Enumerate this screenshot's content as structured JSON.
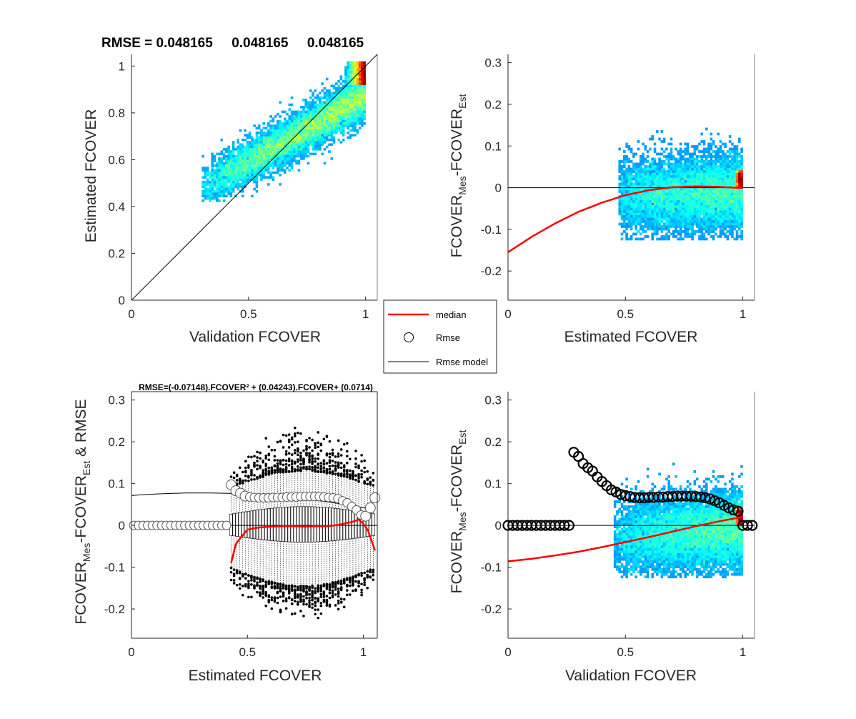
{
  "figure": {
    "background": "#ffffff",
    "colormap": "jet"
  },
  "legend": {
    "entries": [
      "median",
      "Rmse",
      "Rmse model"
    ],
    "colors": {
      "median": "#ff0000",
      "rmse": "#000000",
      "model": "#000000"
    }
  },
  "chart_data": [
    {
      "type": "heatmap",
      "id": "top-left",
      "title": "RMSE = 0.048165     0.048165     0.048165",
      "xlabel": "Validation FCOVER",
      "ylabel": "Estimated FCOVER",
      "xlim": [
        0,
        1.05
      ],
      "ylim": [
        0,
        1.05
      ],
      "xticks": [
        0,
        0.5,
        1
      ],
      "xticklabels": [
        "0",
        "0.5",
        "1"
      ],
      "yticks": [
        0,
        0.2,
        0.4,
        0.6,
        0.8,
        1
      ],
      "yticklabels": [
        "0",
        "0.2",
        "0.4",
        "0.6",
        "0.8",
        "1"
      ],
      "reference_line": "y = x",
      "density_cloud": {
        "x_range": [
          0.3,
          1.0
        ],
        "y_range": [
          0.44,
          1.05
        ],
        "trend": "y ≈ 0.48 + 0.55·(x − 0.3)",
        "peak": [
          0.99,
          0.98
        ]
      },
      "grid": false
    },
    {
      "type": "heatmap",
      "id": "top-right",
      "xlabel": "Estimated FCOVER",
      "ylabel": "FCOVER_Mes-FCOVER_Est",
      "xlim": [
        0,
        1.05
      ],
      "ylim": [
        -0.27,
        0.32
      ],
      "xticks": [
        0,
        0.5,
        1
      ],
      "xticklabels": [
        "0",
        "0.5",
        "1"
      ],
      "yticks": [
        -0.2,
        -0.1,
        0,
        0.1,
        0.2,
        0.3
      ],
      "yticklabels": [
        "-0.2",
        "-0.1",
        "0",
        "0.1",
        "0.2",
        "0.3"
      ],
      "zero_line": true,
      "median_curve": {
        "x": [
          0.0,
          0.1,
          0.2,
          0.3,
          0.4,
          0.5,
          0.6,
          0.7,
          0.8,
          0.9,
          1.0
        ],
        "y": [
          -0.155,
          -0.118,
          -0.086,
          -0.058,
          -0.036,
          -0.018,
          -0.006,
          0.001,
          0.003,
          0.002,
          -0.001
        ]
      },
      "density_cloud": {
        "x_range": [
          0.47,
          1.0
        ],
        "y_range": [
          -0.12,
          0.14
        ],
        "peak": [
          0.99,
          0.02
        ]
      },
      "grid": false
    },
    {
      "type": "box",
      "id": "bottom-left",
      "title": "RMSE=(-0.07148).FCOVER² + (0.04243).FCOVER+ (0.0714)",
      "xlabel": "Estimated FCOVER",
      "ylabel": "FCOVER_Mes-FCOVER_Est & RMSE",
      "xlim": [
        0,
        1.06
      ],
      "ylim": [
        -0.27,
        0.32
      ],
      "xticks": [
        0,
        0.5,
        1
      ],
      "xticklabels": [
        "0",
        "0.5",
        "1"
      ],
      "yticks": [
        -0.2,
        -0.1,
        0,
        0.1,
        0.2,
        0.3
      ],
      "yticklabels": [
        "-0.2",
        "-0.1",
        "0",
        "0.1",
        "0.2",
        "0.3"
      ],
      "zero_line": true,
      "rmse_model": {
        "a": -0.07148,
        "b": 0.04243,
        "c": 0.0714
      },
      "rmse_points": {
        "x": [
          0.01,
          0.03,
          0.05,
          0.07,
          0.09,
          0.11,
          0.13,
          0.15,
          0.17,
          0.19,
          0.21,
          0.23,
          0.25,
          0.27,
          0.29,
          0.31,
          0.33,
          0.35,
          0.37,
          0.39,
          0.41,
          0.43,
          0.45,
          0.47,
          0.49,
          0.51,
          0.53,
          0.55,
          0.57,
          0.59,
          0.61,
          0.63,
          0.65,
          0.67,
          0.69,
          0.71,
          0.73,
          0.75,
          0.77,
          0.79,
          0.81,
          0.83,
          0.85,
          0.87,
          0.89,
          0.91,
          0.93,
          0.95,
          0.97,
          0.99,
          1.01,
          1.03,
          1.05
        ],
        "y": [
          0,
          0,
          0,
          0,
          0,
          0,
          0,
          0,
          0,
          0,
          0,
          0,
          0,
          0,
          0,
          0,
          0,
          0,
          0,
          0,
          0,
          0.097,
          0.083,
          0.077,
          0.07,
          0.068,
          0.067,
          0.066,
          0.066,
          0.066,
          0.067,
          0.067,
          0.067,
          0.068,
          0.068,
          0.068,
          0.069,
          0.069,
          0.069,
          0.069,
          0.069,
          0.068,
          0.067,
          0.066,
          0.064,
          0.059,
          0.054,
          0.045,
          0.037,
          0.025,
          0.022,
          0.042,
          0.066
        ]
      },
      "median_curve": {
        "x": [
          0.43,
          0.45,
          0.47,
          0.5,
          0.55,
          0.6,
          0.65,
          0.7,
          0.75,
          0.8,
          0.85,
          0.9,
          0.95,
          0.98,
          1.0,
          1.02,
          1.05
        ],
        "y": [
          -0.09,
          -0.045,
          -0.03,
          -0.01,
          -0.005,
          -0.003,
          -0.002,
          -0.002,
          -0.003,
          -0.002,
          -0.002,
          0.002,
          0.008,
          0.014,
          0.004,
          -0.012,
          -0.06
        ]
      },
      "boxes": {
        "x_range": [
          0.43,
          1.05
        ],
        "q1": -0.04,
        "q3": 0.045,
        "whisker_low": -0.145,
        "whisker_high": 0.13,
        "outlier_range_low": [
          -0.23,
          -0.13
        ],
        "outlier_range_high": [
          0.12,
          0.25
        ]
      },
      "grid": false
    },
    {
      "type": "heatmap",
      "id": "bottom-right",
      "xlabel": "Validation FCOVER",
      "ylabel": "FCOVER_Mes-FCOVER_Est",
      "xlim": [
        0,
        1.05
      ],
      "ylim": [
        -0.27,
        0.32
      ],
      "xticks": [
        0,
        0.5,
        1
      ],
      "xticklabels": [
        "0",
        "0.5",
        "1"
      ],
      "yticks": [
        -0.2,
        -0.1,
        0,
        0.1,
        0.2,
        0.3
      ],
      "yticklabels": [
        "-0.2",
        "-0.1",
        "0",
        "0.1",
        "0.2",
        "0.3"
      ],
      "zero_line": true,
      "rmse_points": {
        "x": [
          0.0,
          0.02,
          0.04,
          0.06,
          0.08,
          0.1,
          0.12,
          0.14,
          0.16,
          0.18,
          0.2,
          0.22,
          0.24,
          0.26,
          0.28,
          0.3,
          0.32,
          0.34,
          0.36,
          0.38,
          0.4,
          0.42,
          0.44,
          0.46,
          0.48,
          0.5,
          0.52,
          0.54,
          0.56,
          0.58,
          0.6,
          0.62,
          0.64,
          0.66,
          0.68,
          0.7,
          0.72,
          0.74,
          0.76,
          0.78,
          0.8,
          0.82,
          0.84,
          0.86,
          0.88,
          0.9,
          0.92,
          0.94,
          0.96,
          0.98,
          1.0,
          1.02,
          1.04
        ],
        "y": [
          0,
          0,
          0,
          0,
          0,
          0,
          0,
          0,
          0,
          0,
          0,
          0,
          0,
          0,
          0.175,
          0.165,
          0.148,
          0.138,
          0.13,
          0.116,
          0.105,
          0.095,
          0.085,
          0.08,
          0.074,
          0.071,
          0.069,
          0.067,
          0.066,
          0.066,
          0.067,
          0.067,
          0.068,
          0.068,
          0.069,
          0.069,
          0.07,
          0.07,
          0.07,
          0.07,
          0.069,
          0.068,
          0.066,
          0.063,
          0.059,
          0.054,
          0.048,
          0.042,
          0.037,
          0.034,
          0.0,
          0.0,
          0.0
        ]
      },
      "median_curve": {
        "x": [
          0.0,
          0.1,
          0.2,
          0.3,
          0.4,
          0.5,
          0.6,
          0.7,
          0.8,
          0.9,
          1.0
        ],
        "y": [
          -0.086,
          -0.08,
          -0.072,
          -0.063,
          -0.052,
          -0.04,
          -0.028,
          -0.015,
          -0.002,
          0.01,
          0.02
        ]
      },
      "density_cloud": {
        "x_range": [
          0.45,
          1.0
        ],
        "y_range": [
          -0.12,
          0.15
        ],
        "peak": [
          0.99,
          0.02
        ]
      },
      "grid": false
    }
  ]
}
